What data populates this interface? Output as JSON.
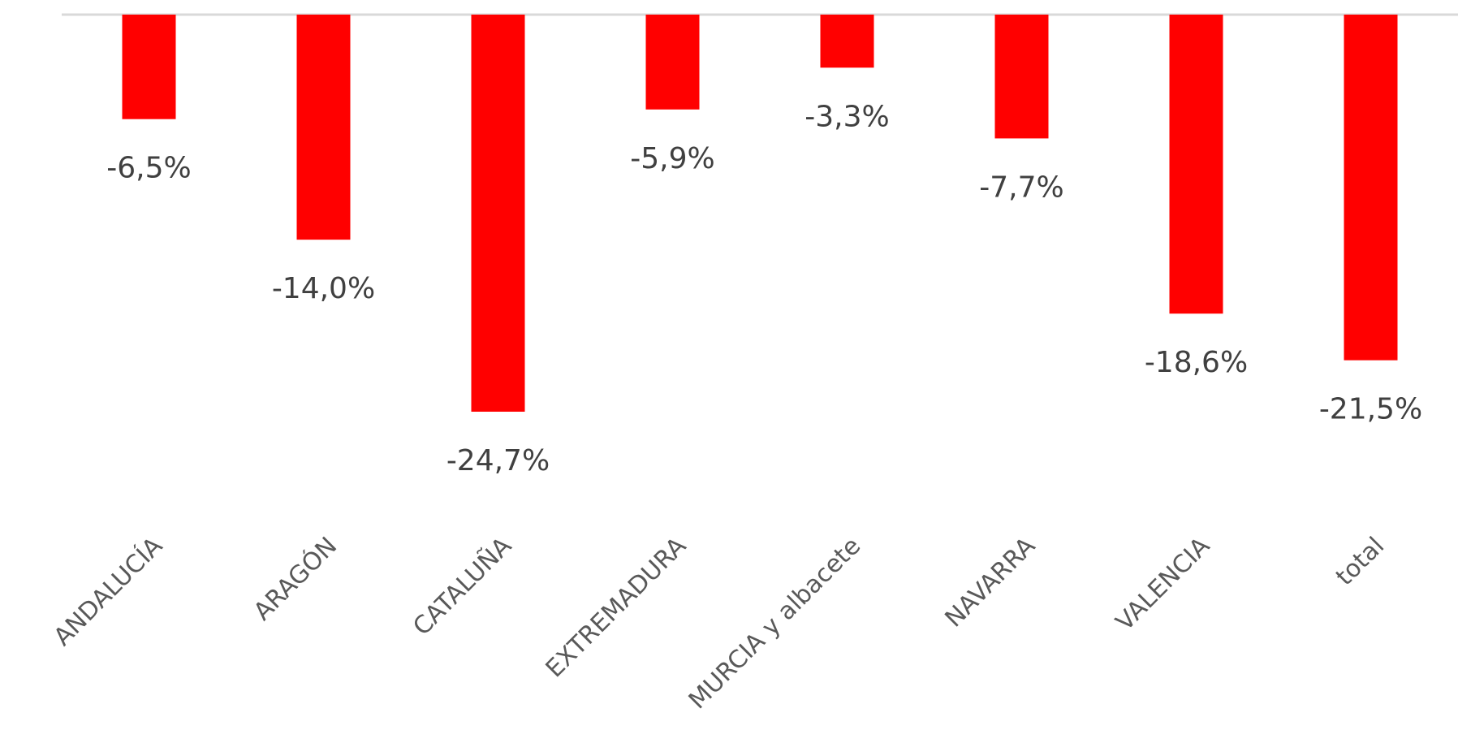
{
  "chart_data": {
    "type": "bar",
    "categories": [
      "ANDALUCÍA",
      "ARAGÓN",
      "CATALUÑA",
      "EXTREMADURA",
      "MURCIA y albacete",
      "NAVARRA",
      "VALENCIA",
      "total"
    ],
    "values": [
      -6.5,
      -14.0,
      -24.7,
      -5.9,
      -3.3,
      -7.7,
      -18.6,
      -21.5
    ],
    "value_labels": [
      "-6,5%",
      "-14,0%",
      "-24,7%",
      "-5,9%",
      "-3,3%",
      "-7,7%",
      "-18,6%",
      "-21,5%"
    ],
    "color": "#ff0000"
  }
}
